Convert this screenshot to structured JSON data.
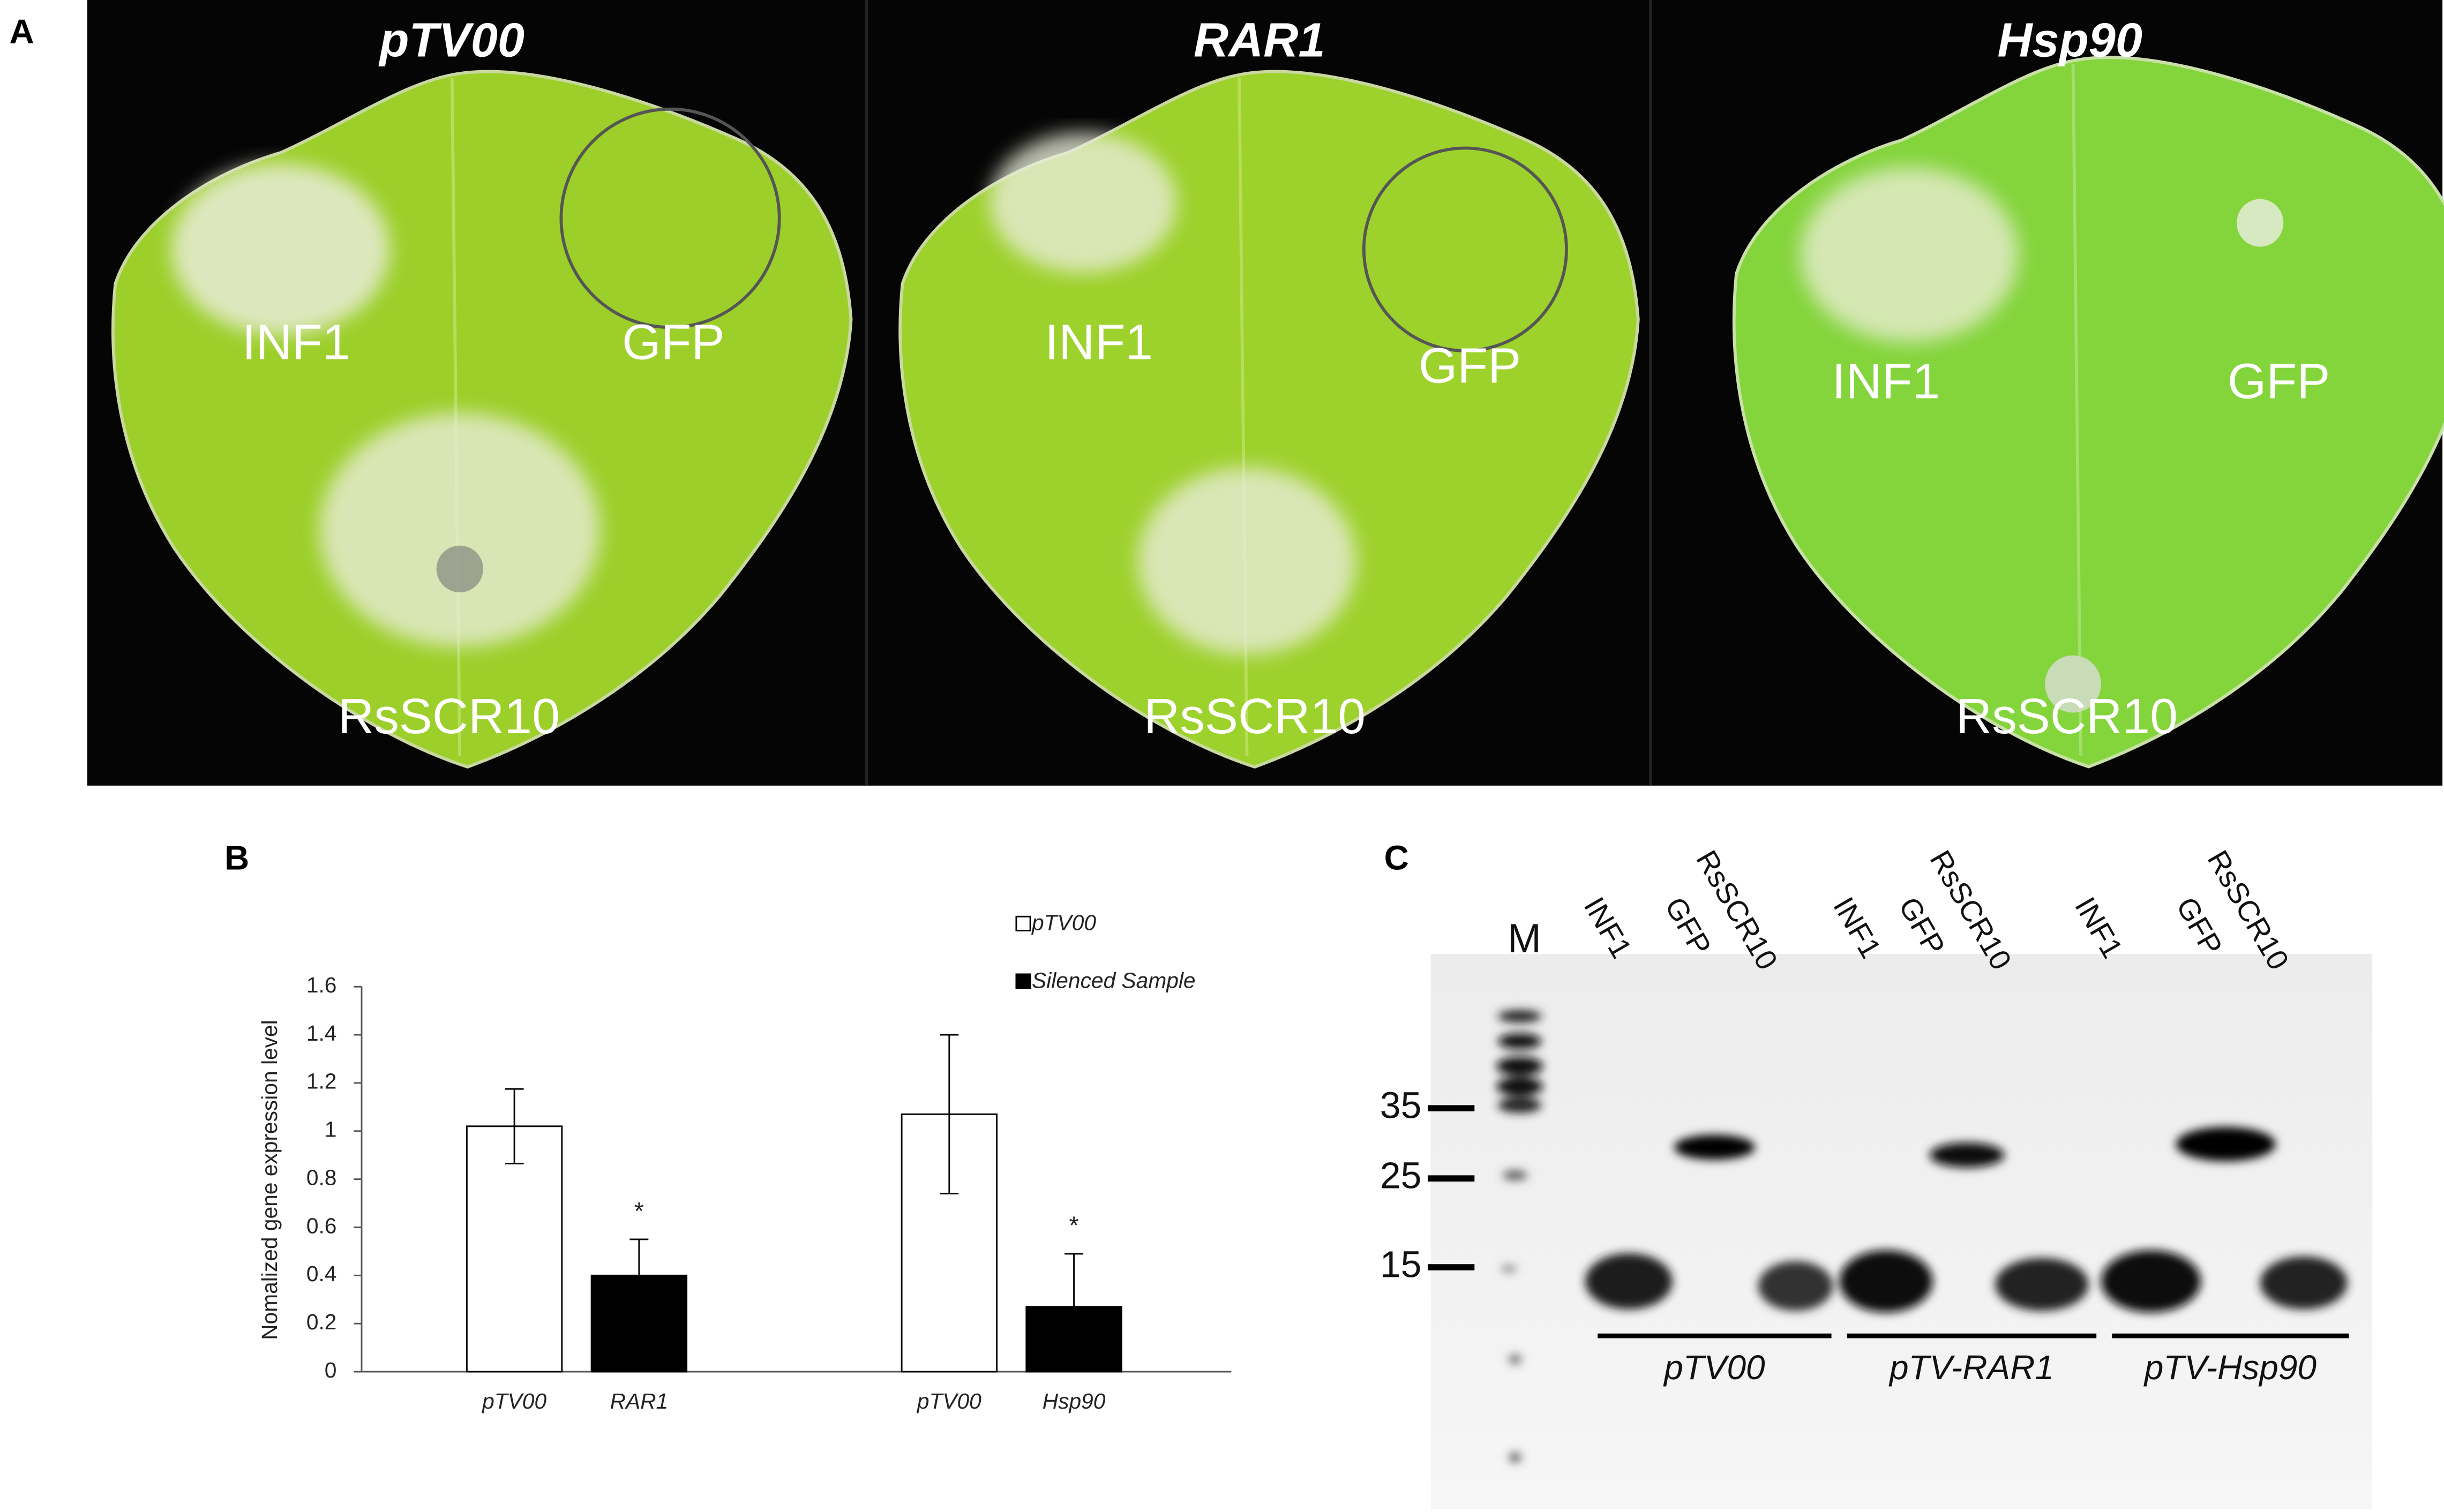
{
  "panel_a": {
    "label": "A",
    "photos": [
      {
        "title": "pTV00",
        "labels": [
          "INF1",
          "GFP",
          "RsSCR10"
        ]
      },
      {
        "title": "RAR1",
        "labels": [
          "INF1",
          "GFP",
          "RsSCR10"
        ]
      },
      {
        "title": "Hsp90",
        "labels": [
          "INF1",
          "GFP",
          "RsSCR10"
        ]
      }
    ]
  },
  "chart_data": {
    "type": "bar",
    "label": "B",
    "y_label": "Nomalized gene expression level",
    "categories": [
      "pTV00",
      "RAR1",
      "pTV00",
      "Hsp90"
    ],
    "series": [
      {
        "name": "pTV00",
        "color": "#ffffff",
        "values": [
          1.02,
          null,
          1.07,
          null
        ],
        "errors": [
          0.155,
          null,
          0.33,
          null
        ]
      },
      {
        "name": "Silenced Sample",
        "color": "#000000",
        "values": [
          null,
          0.4,
          null,
          0.27
        ],
        "errors": [
          null,
          0.15,
          null,
          0.22
        ],
        "significance": [
          null,
          "*",
          null,
          "*"
        ]
      }
    ],
    "ylim": [
      0,
      1.6
    ],
    "yticks": [
      0,
      0.2,
      0.4,
      0.6,
      0.8,
      1,
      1.2,
      1.4,
      1.6
    ],
    "grid": false
  },
  "panel_c": {
    "label": "C",
    "marker_lane": "M",
    "lanes": [
      "INF1",
      "GFP",
      "RsSCR10",
      "INF1",
      "GFP",
      "RsSCR10",
      "INF1",
      "GFP",
      "RsSCR10"
    ],
    "markers": [
      "35",
      "25",
      "15"
    ],
    "groups": [
      "pTV00",
      "pTV-RAR1",
      "pTV-Hsp90"
    ]
  }
}
